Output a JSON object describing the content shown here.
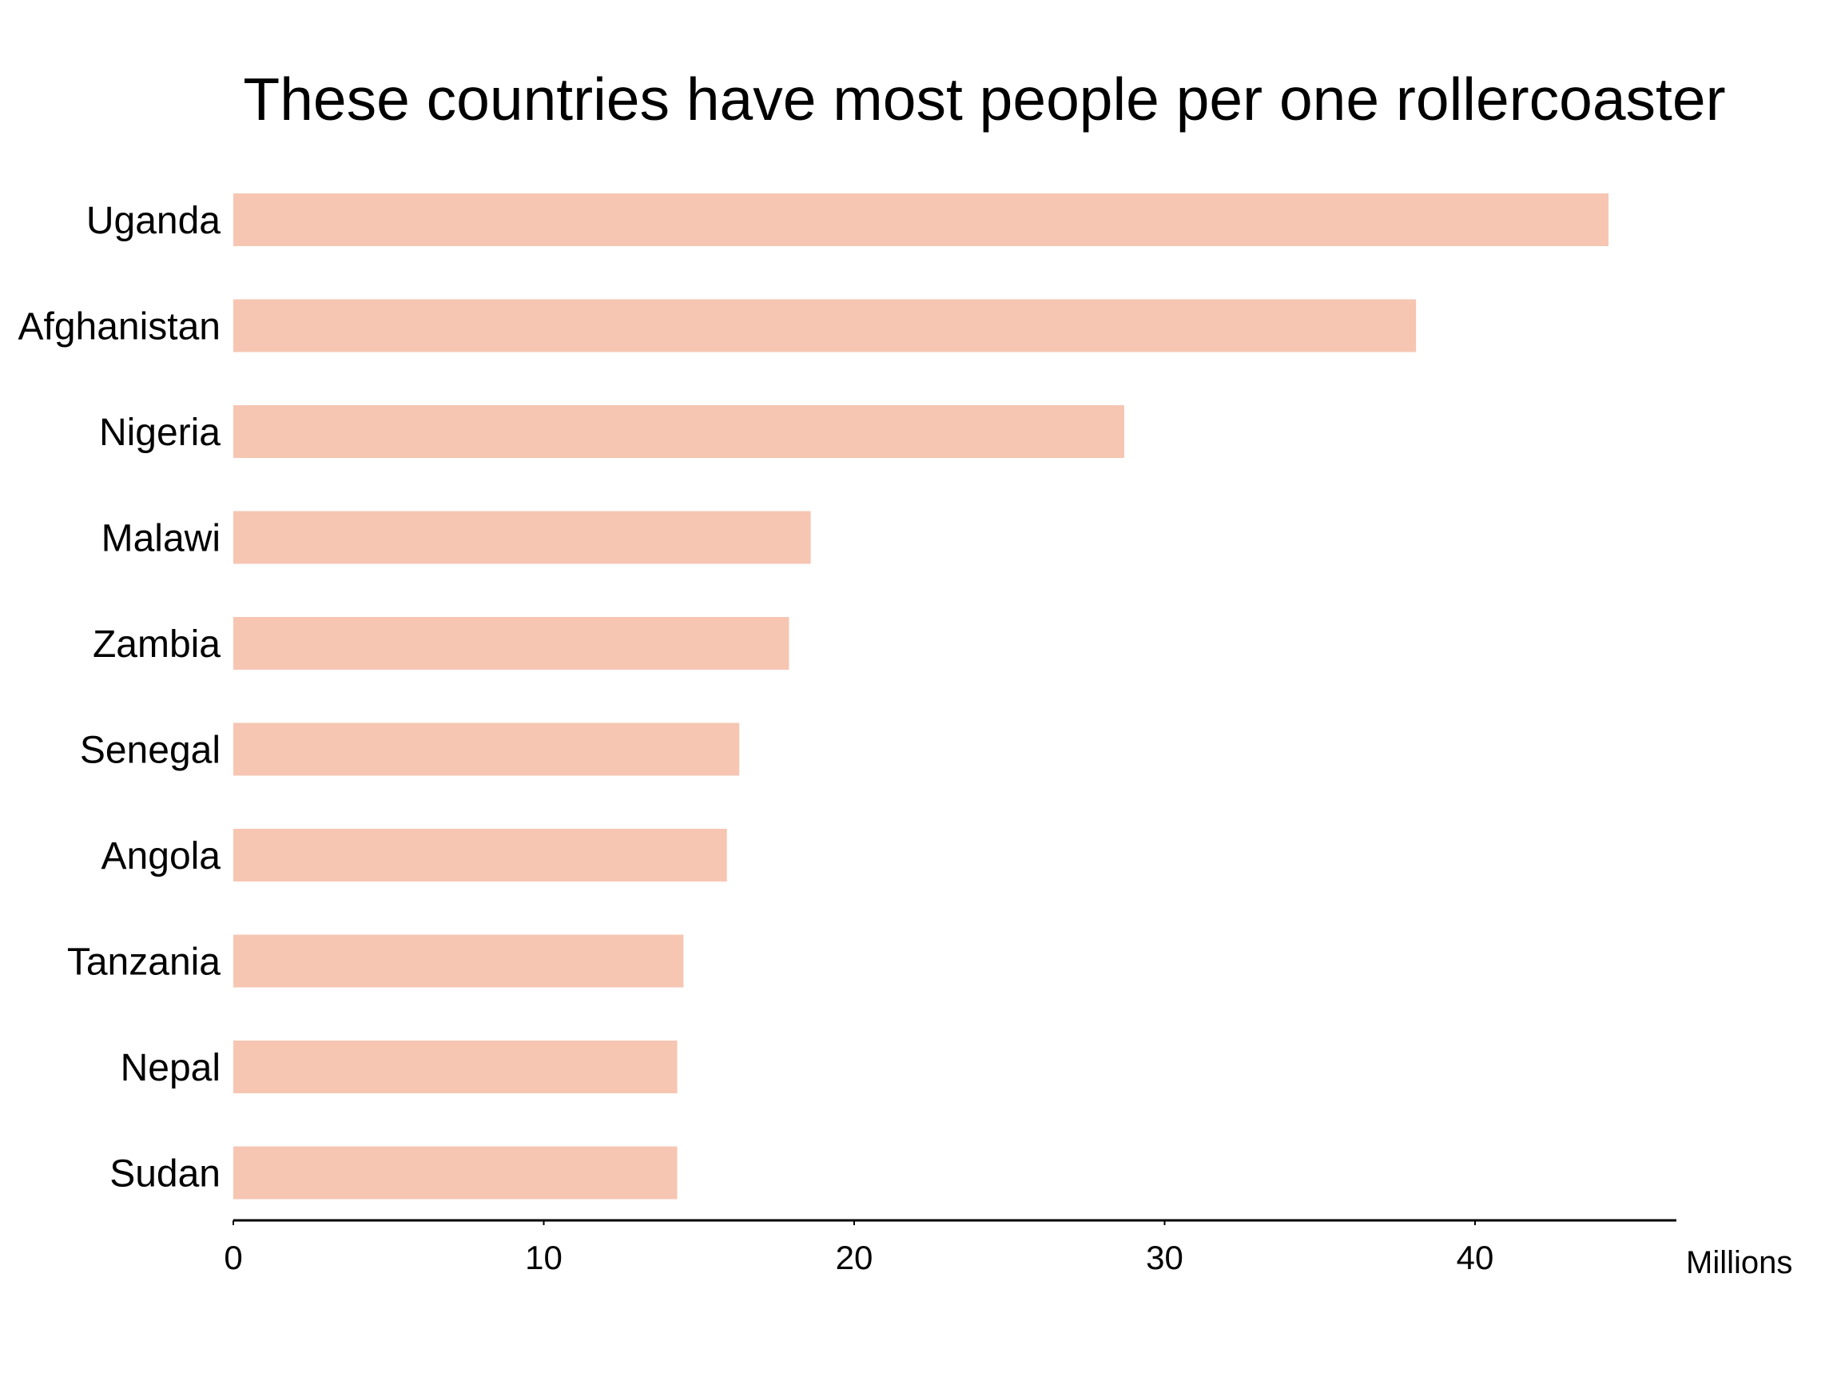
{
  "colors": {
    "bar": "#f6c6b3",
    "axis": "#000000",
    "background": "#ffffff",
    "text": "#000000"
  },
  "chart_data": {
    "type": "bar",
    "orientation": "horizontal",
    "title": "These countries have most people per one rollercoaster",
    "categories": [
      "Uganda",
      "Afghanistan",
      "Nigeria",
      "Malawi",
      "Zambia",
      "Senegal",
      "Angola",
      "Tanzania",
      "Nepal",
      "Sudan"
    ],
    "values": [
      44.3,
      38.1,
      28.7,
      18.6,
      17.9,
      16.3,
      15.9,
      14.5,
      14.3,
      14.3
    ],
    "x_unit_label": "Millions",
    "x_ticks": [
      "0",
      "10",
      "20",
      "30",
      "40"
    ],
    "xlim": [
      0,
      46.5
    ],
    "grid": false,
    "legend": "none"
  }
}
